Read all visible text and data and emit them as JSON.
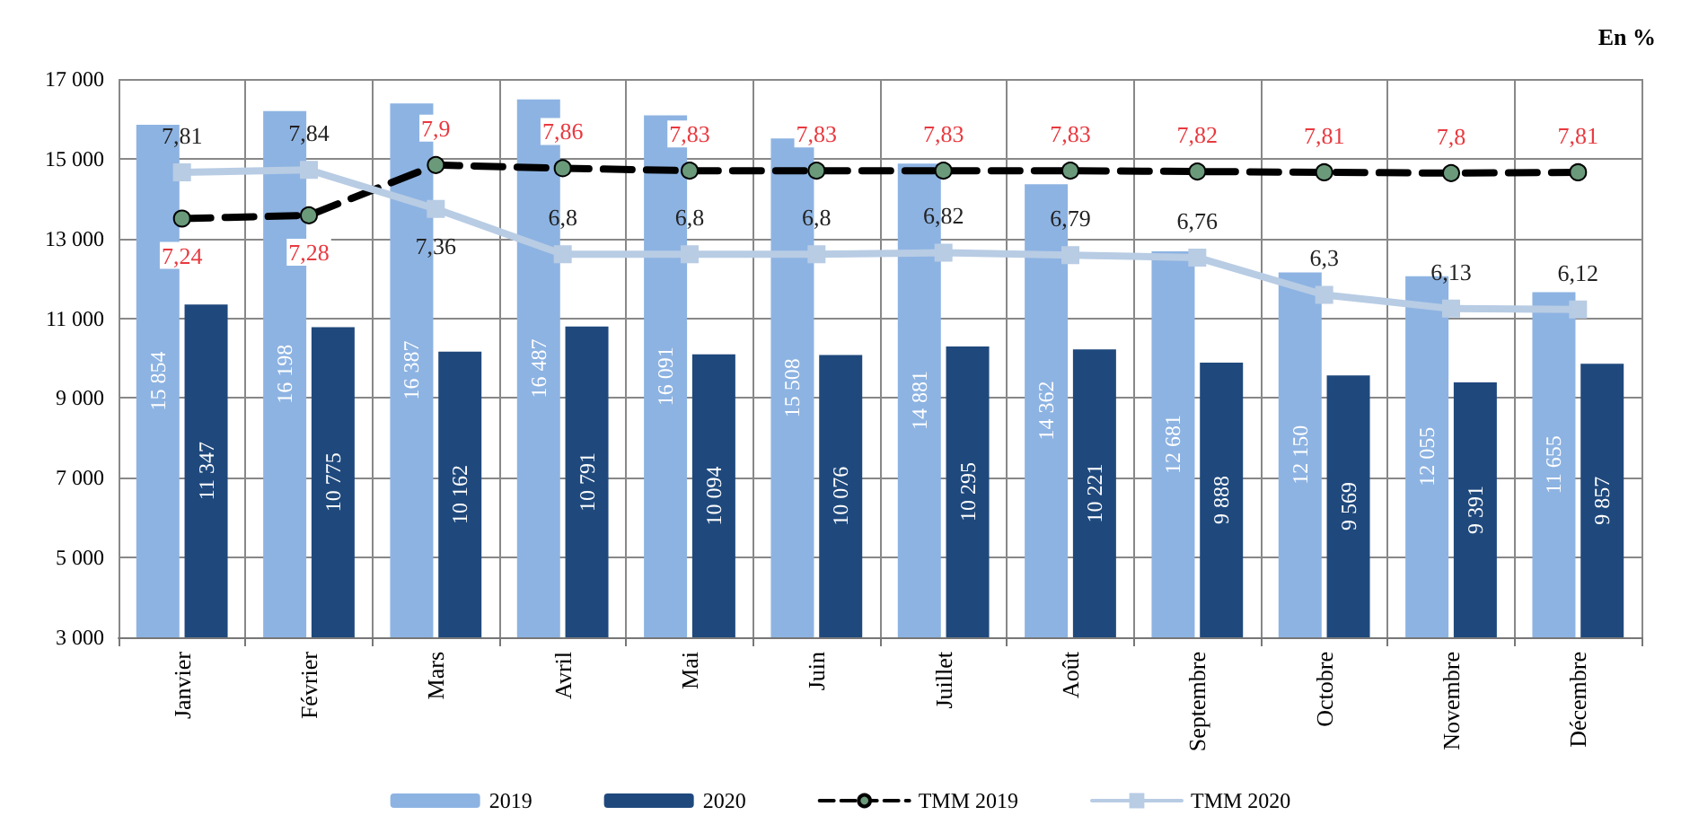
{
  "chart_data": {
    "type": "bar",
    "categories": [
      "Janvier",
      "Février",
      "Mars",
      "Avril",
      "Mai",
      "Juin",
      "Juillet",
      "Août",
      "Septembre",
      "Octobre",
      "Novembre",
      "Décembre"
    ],
    "series": [
      {
        "name": "2019",
        "color": "#8db3e2",
        "values": [
          15854,
          16198,
          16387,
          16487,
          16091,
          15508,
          14881,
          14362,
          12681,
          12150,
          12055,
          11655
        ],
        "value_labels": [
          "15 854",
          "16 198",
          "16 387",
          "16 487",
          "16 091",
          "15 508",
          "14 881",
          "14 362",
          "12 681",
          "12 150",
          "12 055",
          "11 655"
        ]
      },
      {
        "name": "2020",
        "color": "#1f497d",
        "values": [
          11347,
          10775,
          10162,
          10791,
          10094,
          10076,
          10295,
          10221,
          9888,
          9569,
          9391,
          9857
        ],
        "value_labels": [
          "11 347",
          "10 775",
          "10 162",
          "10 791",
          "10 094",
          "10 076",
          "10 295",
          "10 221",
          "9 888",
          "9 569",
          "9 391",
          "9 857"
        ]
      },
      {
        "name": "TMM 2019",
        "type": "line",
        "axis": "y2",
        "color": "#000000",
        "marker": "circle",
        "line_style": "dashed",
        "values": [
          7.24,
          7.28,
          7.9,
          7.86,
          7.83,
          7.83,
          7.83,
          7.83,
          7.82,
          7.81,
          7.8,
          7.81
        ],
        "value_labels": [
          "7,24",
          "7,28",
          "7,9",
          "7,86",
          "7,83",
          "7,83",
          "7,83",
          "7,83",
          "7,82",
          "7,81",
          "7,8",
          "7,81"
        ]
      },
      {
        "name": "TMM 2020",
        "type": "line",
        "axis": "y2",
        "color": "#b8cce4",
        "marker": "square",
        "line_style": "solid",
        "values": [
          7.81,
          7.84,
          7.36,
          6.8,
          6.8,
          6.8,
          6.82,
          6.79,
          6.76,
          6.3,
          6.13,
          6.12
        ],
        "value_labels": [
          "7,81",
          "7,84",
          "7,36",
          "6,8",
          "6,8",
          "6,8",
          "6,82",
          "6,79",
          "6,76",
          "6,3",
          "6,13",
          "6,12"
        ]
      }
    ],
    "ylim": [
      3000,
      17000
    ],
    "yticks": [
      {
        "value": 3000,
        "label": "3 000"
      },
      {
        "value": 5000,
        "label": "5 000"
      },
      {
        "value": 7000,
        "label": "7 000"
      },
      {
        "value": 9000,
        "label": "9 000"
      },
      {
        "value": 11000,
        "label": "11 000"
      },
      {
        "value": 13000,
        "label": "13 000"
      },
      {
        "value": 15000,
        "label": "15 000"
      },
      {
        "value": 17000,
        "label": "17 000"
      }
    ],
    "y2lim": [
      2.08,
      8.96
    ],
    "annotations": [
      "En %"
    ],
    "grid": true,
    "legend": "bottom"
  }
}
